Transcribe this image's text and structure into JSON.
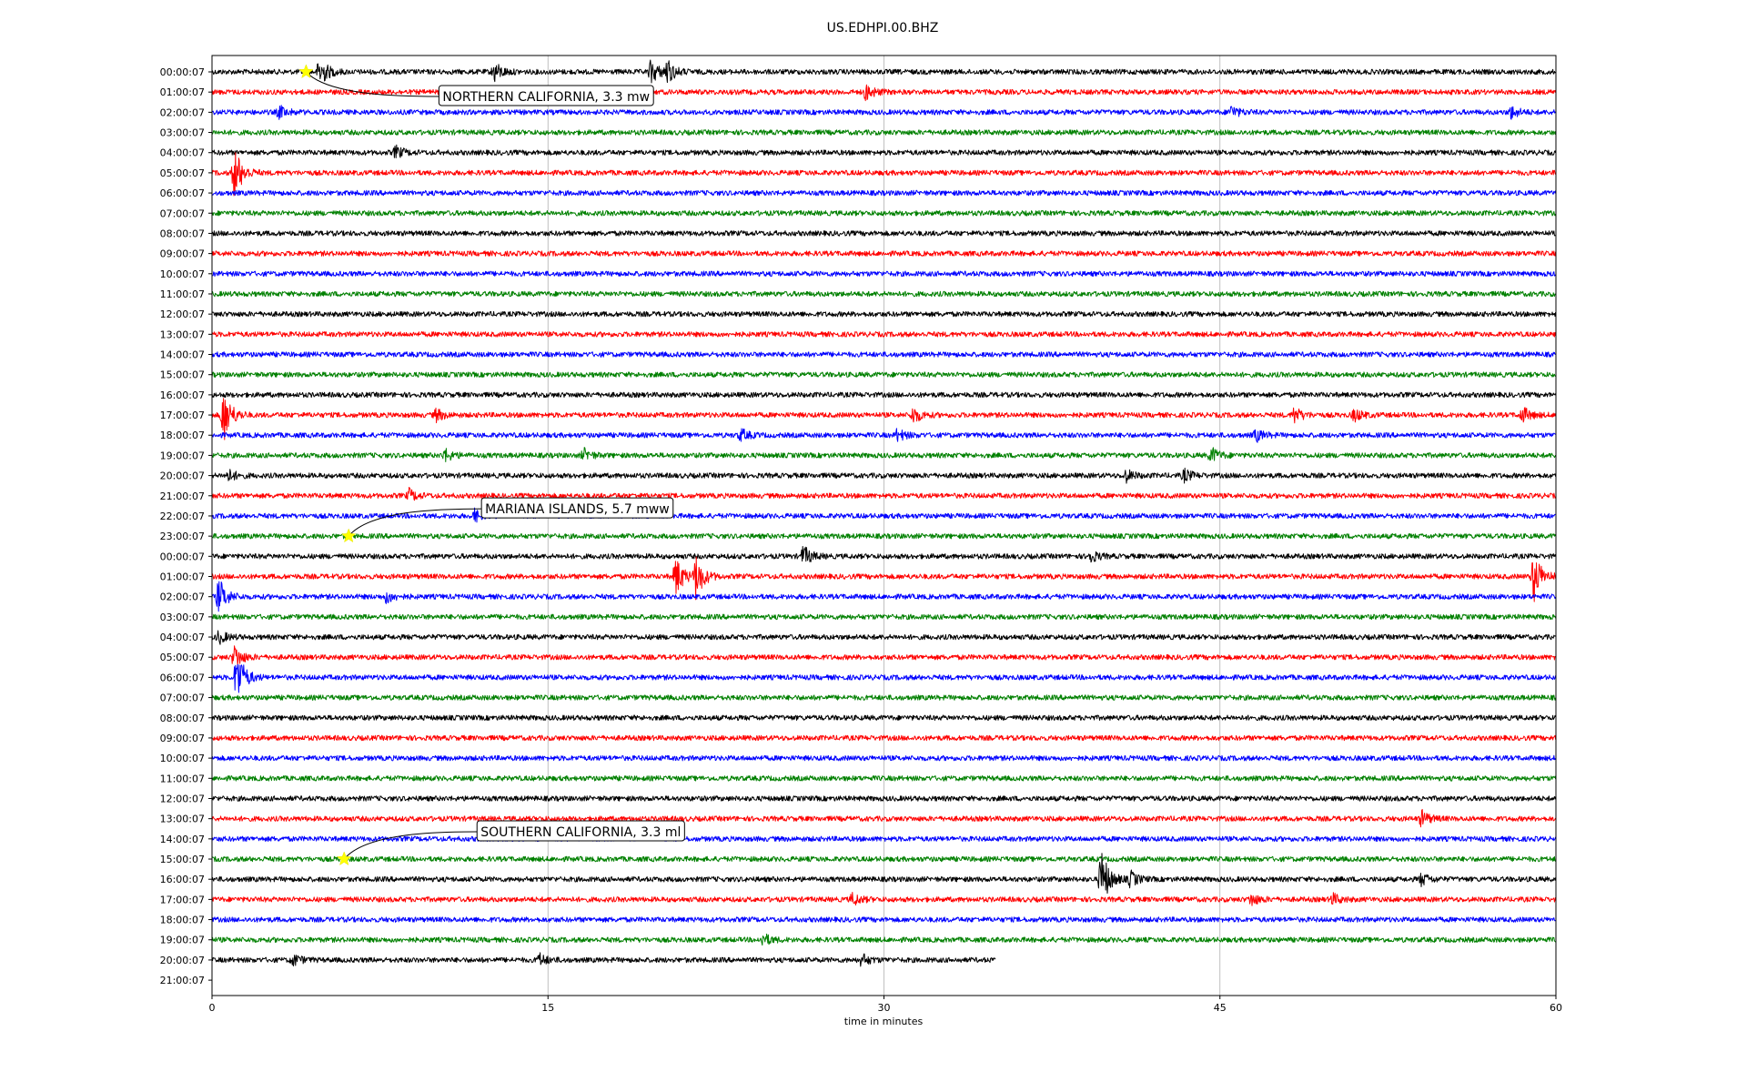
{
  "chart_data": {
    "type": "line",
    "title": "US.EDHPI.00.BHZ",
    "xlabel": "time in minutes",
    "ylabel": "",
    "xlim": [
      0,
      60
    ],
    "xticks": [
      0,
      15,
      30,
      45,
      60
    ],
    "grid": "vertical lines at x ticks",
    "color_cycle": [
      "#000000",
      "#ff0000",
      "#0000ff",
      "#008000"
    ],
    "row_labels": [
      "00:00:07",
      "01:00:07",
      "02:00:07",
      "03:00:07",
      "04:00:07",
      "05:00:07",
      "06:00:07",
      "07:00:07",
      "08:00:07",
      "09:00:07",
      "10:00:07",
      "11:00:07",
      "12:00:07",
      "13:00:07",
      "14:00:07",
      "15:00:07",
      "16:00:07",
      "17:00:07",
      "18:00:07",
      "19:00:07",
      "20:00:07",
      "21:00:07",
      "22:00:07",
      "23:00:07",
      "00:00:07",
      "01:00:07",
      "02:00:07",
      "03:00:07",
      "04:00:07",
      "05:00:07",
      "06:00:07",
      "07:00:07",
      "08:00:07",
      "09:00:07",
      "10:00:07",
      "11:00:07",
      "12:00:07",
      "13:00:07",
      "14:00:07",
      "15:00:07",
      "16:00:07",
      "17:00:07",
      "18:00:07",
      "19:00:07",
      "20:00:07",
      "21:00:07"
    ],
    "last_trace_end_minutes": 35,
    "annotations": [
      {
        "text": "NORTHERN CALIFORNIA, 3.3 mw",
        "row": 0,
        "minute": 4.2
      },
      {
        "text": "MARIANA ISLANDS, 5.7 mww",
        "row": 23,
        "minute": 6.1
      },
      {
        "text": "SOUTHERN CALIFORNIA, 3.3 ml",
        "row": 39,
        "minute": 5.9
      }
    ],
    "bursts": [
      {
        "row": 0,
        "minute": 4.8,
        "amp": 0.8
      },
      {
        "row": 0,
        "minute": 12.6,
        "amp": 0.5
      },
      {
        "row": 0,
        "minute": 19.6,
        "amp": 0.6
      },
      {
        "row": 0,
        "minute": 20.3,
        "amp": 0.6
      },
      {
        "row": 1,
        "minute": 29.2,
        "amp": 0.4
      },
      {
        "row": 2,
        "minute": 3.0,
        "amp": 0.3
      },
      {
        "row": 2,
        "minute": 45.5,
        "amp": 0.3
      },
      {
        "row": 2,
        "minute": 58.0,
        "amp": 0.3
      },
      {
        "row": 4,
        "minute": 8.2,
        "amp": 0.3
      },
      {
        "row": 5,
        "minute": 1.0,
        "amp": 1.3
      },
      {
        "row": 17,
        "minute": 0.5,
        "amp": 1.4
      },
      {
        "row": 17,
        "minute": 10.0,
        "amp": 0.3
      },
      {
        "row": 17,
        "minute": 31.3,
        "amp": 0.4
      },
      {
        "row": 17,
        "minute": 48.3,
        "amp": 0.4
      },
      {
        "row": 17,
        "minute": 51.0,
        "amp": 0.3
      },
      {
        "row": 17,
        "minute": 58.5,
        "amp": 0.4
      },
      {
        "row": 18,
        "minute": 23.6,
        "amp": 0.3
      },
      {
        "row": 18,
        "minute": 30.6,
        "amp": 0.3
      },
      {
        "row": 18,
        "minute": 46.6,
        "amp": 0.3
      },
      {
        "row": 19,
        "minute": 10.4,
        "amp": 0.3
      },
      {
        "row": 19,
        "minute": 16.6,
        "amp": 0.3
      },
      {
        "row": 19,
        "minute": 44.6,
        "amp": 0.4
      },
      {
        "row": 20,
        "minute": 0.7,
        "amp": 0.3
      },
      {
        "row": 20,
        "minute": 40.8,
        "amp": 0.3
      },
      {
        "row": 20,
        "minute": 43.4,
        "amp": 0.3
      },
      {
        "row": 21,
        "minute": 8.8,
        "amp": 0.3
      },
      {
        "row": 22,
        "minute": 11.7,
        "amp": 0.3
      },
      {
        "row": 24,
        "minute": 26.4,
        "amp": 0.5
      },
      {
        "row": 24,
        "minute": 39.2,
        "amp": 0.3
      },
      {
        "row": 25,
        "minute": 20.7,
        "amp": 1.0
      },
      {
        "row": 25,
        "minute": 21.6,
        "amp": 1.1
      },
      {
        "row": 25,
        "minute": 59.0,
        "amp": 1.3
      },
      {
        "row": 26,
        "minute": 0.3,
        "amp": 0.9
      },
      {
        "row": 26,
        "minute": 7.8,
        "amp": 0.3
      },
      {
        "row": 28,
        "minute": 0.3,
        "amp": 0.3
      },
      {
        "row": 29,
        "minute": 1.0,
        "amp": 0.6
      },
      {
        "row": 30,
        "minute": 1.1,
        "amp": 1.4
      },
      {
        "row": 37,
        "minute": 54.0,
        "amp": 0.4
      },
      {
        "row": 40,
        "minute": 39.7,
        "amp": 1.5
      },
      {
        "row": 40,
        "minute": 41.0,
        "amp": 0.4
      },
      {
        "row": 40,
        "minute": 54.0,
        "amp": 0.3
      },
      {
        "row": 41,
        "minute": 28.6,
        "amp": 0.3
      },
      {
        "row": 41,
        "minute": 46.4,
        "amp": 0.3
      },
      {
        "row": 41,
        "minute": 50.0,
        "amp": 0.3
      },
      {
        "row": 43,
        "minute": 24.6,
        "amp": 0.3
      },
      {
        "row": 44,
        "minute": 3.6,
        "amp": 0.3
      },
      {
        "row": 44,
        "minute": 14.6,
        "amp": 0.3
      },
      {
        "row": 44,
        "minute": 29.0,
        "amp": 0.3
      }
    ]
  }
}
